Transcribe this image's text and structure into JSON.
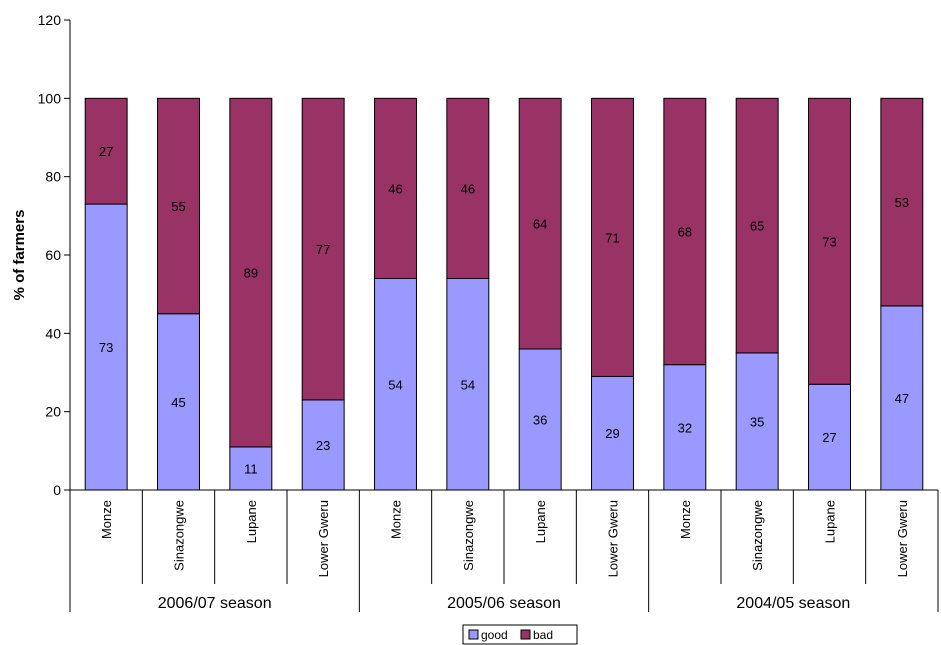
{
  "chart_data": {
    "type": "bar",
    "stacked": true,
    "title": "",
    "xlabel": "",
    "ylabel": "% of farmers",
    "ylim": [
      0,
      120
    ],
    "yticks": [
      0,
      20,
      40,
      60,
      80,
      100,
      120
    ],
    "grid": false,
    "legend_position": "bottom",
    "groups": [
      {
        "label": "2006/07 season",
        "categories": [
          "Monze",
          "Sinazongwe",
          "Lupane",
          "Lower Gweru"
        ]
      },
      {
        "label": "2005/06 season",
        "categories": [
          "Monze",
          "Sinazongwe",
          "Lupane",
          "Lower Gweru"
        ]
      },
      {
        "label": "2004/05 season",
        "categories": [
          "Monze",
          "Sinazongwe",
          "Lupane",
          "Lower Gweru"
        ]
      }
    ],
    "series": [
      {
        "name": "good",
        "color": "#9999ff",
        "values": [
          73,
          45,
          11,
          23,
          54,
          54,
          36,
          29,
          32,
          35,
          27,
          47
        ]
      },
      {
        "name": "bad",
        "color": "#993366",
        "values": [
          27,
          55,
          89,
          77,
          46,
          46,
          64,
          71,
          68,
          65,
          73,
          53
        ]
      }
    ]
  }
}
